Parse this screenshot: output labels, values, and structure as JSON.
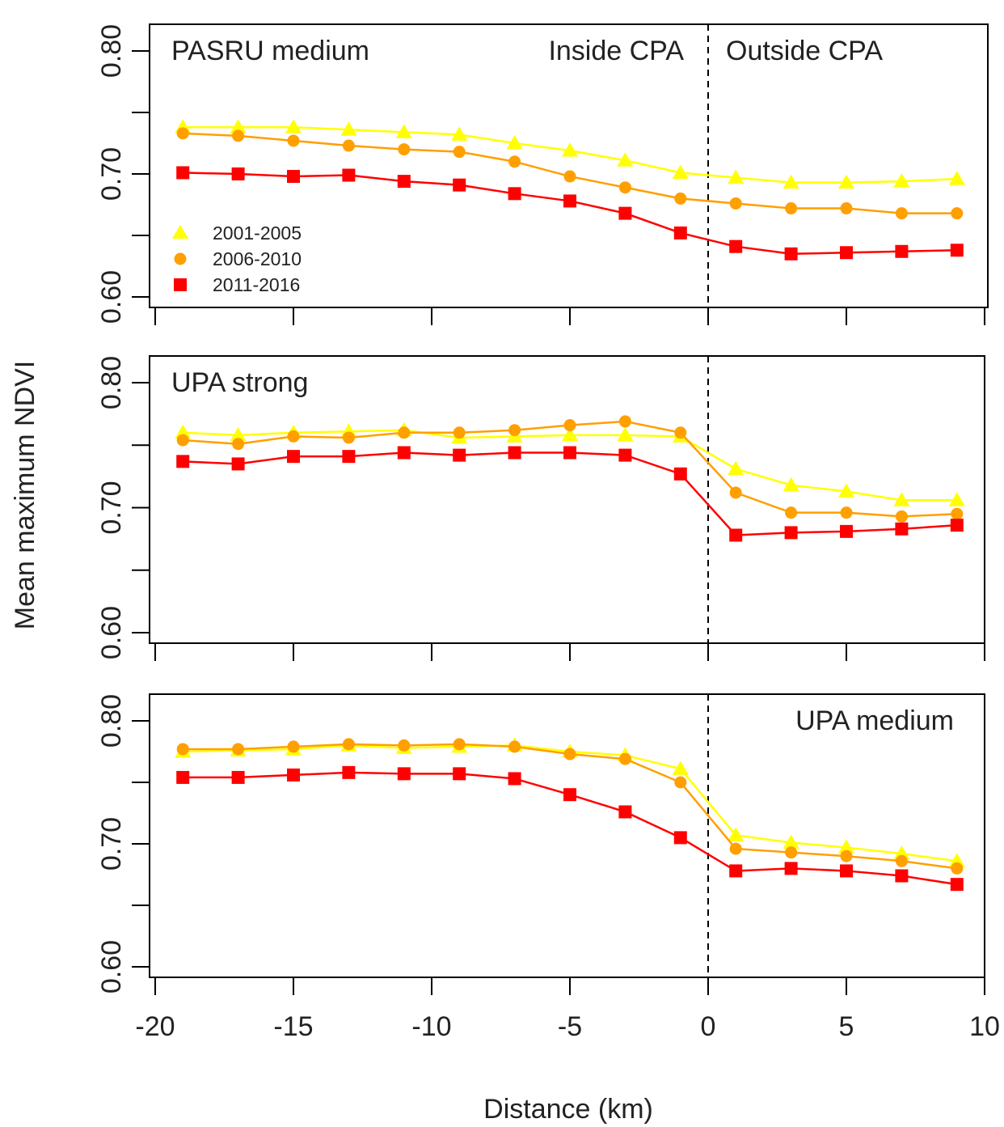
{
  "chart_data": {
    "type": "line",
    "xlabel": "Distance (km)",
    "ylabel": "Mean maximum NDVI",
    "xlim": [
      -20,
      10
    ],
    "ylim": [
      0.6,
      0.8
    ],
    "x_ticks": [
      -20,
      -15,
      -10,
      -5,
      0,
      5,
      10
    ],
    "x_tick_labels": [
      "-20",
      "-15",
      "-10",
      "-5",
      "0",
      "5",
      "10"
    ],
    "y_ticks": [
      0.6,
      0.65,
      0.7,
      0.75,
      0.8
    ],
    "y_tick_labels": [
      "0.60",
      "",
      "0.70",
      "",
      "0.80"
    ],
    "x": [
      -19,
      -17,
      -15,
      -13,
      -11,
      -9,
      -7,
      -5,
      -3,
      -1,
      1,
      3,
      5,
      7,
      9
    ],
    "series_styles": [
      {
        "name": "2001-2005",
        "marker": "triangle",
        "color": "#ffff00"
      },
      {
        "name": "2006-2010",
        "marker": "circle",
        "color": "#ff9f00"
      },
      {
        "name": "2011-2016",
        "marker": "square",
        "color": "#ff0000"
      }
    ],
    "vline_x": 0,
    "panels": [
      {
        "label": "PASRU medium",
        "annotations": [
          "Inside CPA",
          "Outside CPA"
        ],
        "show_legend": true,
        "series": [
          {
            "name": "2001-2005",
            "values": [
              0.738,
              0.738,
              0.738,
              0.736,
              0.734,
              0.732,
              0.725,
              0.719,
              0.711,
              0.701,
              0.697,
              0.693,
              0.693,
              0.694,
              0.696
            ]
          },
          {
            "name": "2006-2010",
            "values": [
              0.733,
              0.731,
              0.727,
              0.723,
              0.72,
              0.718,
              0.71,
              0.698,
              0.689,
              0.68,
              0.676,
              0.672,
              0.672,
              0.668,
              0.668
            ]
          },
          {
            "name": "2011-2016",
            "values": [
              0.701,
              0.7,
              0.698,
              0.699,
              0.694,
              0.691,
              0.684,
              0.678,
              0.668,
              0.652,
              0.641,
              0.635,
              0.636,
              0.637,
              0.638
            ]
          }
        ]
      },
      {
        "label": "UPA strong",
        "annotations": [],
        "show_legend": false,
        "series": [
          {
            "name": "2001-2005",
            "values": [
              0.76,
              0.758,
              0.76,
              0.761,
              0.762,
              0.756,
              0.757,
              0.758,
              0.758,
              0.757,
              0.731,
              0.718,
              0.713,
              0.706,
              0.706
            ]
          },
          {
            "name": "2006-2010",
            "values": [
              0.754,
              0.751,
              0.757,
              0.756,
              0.76,
              0.76,
              0.762,
              0.766,
              0.769,
              0.76,
              0.712,
              0.696,
              0.696,
              0.693,
              0.695
            ]
          },
          {
            "name": "2011-2016",
            "values": [
              0.737,
              0.735,
              0.741,
              0.741,
              0.744,
              0.742,
              0.744,
              0.744,
              0.742,
              0.727,
              0.678,
              0.68,
              0.681,
              0.683,
              0.686
            ]
          }
        ]
      },
      {
        "label": "UPA medium",
        "annotations": [],
        "show_legend": false,
        "series": [
          {
            "name": "2001-2005",
            "values": [
              0.775,
              0.776,
              0.777,
              0.78,
              0.778,
              0.779,
              0.78,
              0.775,
              0.772,
              0.761,
              0.707,
              0.701,
              0.697,
              0.692,
              0.686
            ]
          },
          {
            "name": "2006-2010",
            "values": [
              0.777,
              0.777,
              0.779,
              0.781,
              0.78,
              0.781,
              0.779,
              0.773,
              0.769,
              0.75,
              0.696,
              0.693,
              0.69,
              0.686,
              0.68
            ]
          },
          {
            "name": "2011-2016",
            "values": [
              0.754,
              0.754,
              0.756,
              0.758,
              0.757,
              0.757,
              0.753,
              0.74,
              0.726,
              0.705,
              0.678,
              0.68,
              0.678,
              0.674,
              0.667
            ]
          }
        ]
      }
    ]
  }
}
